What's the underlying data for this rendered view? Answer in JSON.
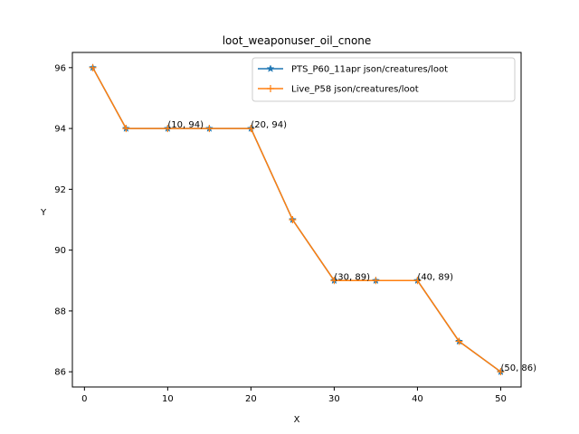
{
  "chart_data": {
    "type": "line",
    "title": "loot_weaponuser_oil_cnone",
    "xlabel": "X",
    "ylabel": "Y",
    "xlim": [
      -1.45,
      52.45
    ],
    "ylim": [
      85.5,
      96.5
    ],
    "xticks": [
      0,
      10,
      20,
      30,
      40,
      50
    ],
    "yticks": [
      86,
      88,
      90,
      92,
      94,
      96
    ],
    "grid": false,
    "legend_position": "top-right",
    "colors": {
      "series1": "#1f77b4",
      "series2": "#ff7f0e"
    },
    "x": [
      1,
      5,
      10,
      15,
      20,
      25,
      30,
      35,
      40,
      45,
      50
    ],
    "series": [
      {
        "name": "PTS_P60_11apr json/creatures/loot",
        "marker": "star",
        "values": [
          96,
          94,
          94,
          94,
          94,
          91,
          89,
          89,
          89,
          87,
          86
        ]
      },
      {
        "name": "Live_P58 json/creatures/loot",
        "marker": "plus",
        "values": [
          96,
          94,
          94,
          94,
          94,
          91,
          89,
          89,
          89,
          87,
          86
        ]
      }
    ],
    "annotations": [
      {
        "x": 10,
        "y": 94,
        "text": "(10, 94)"
      },
      {
        "x": 20,
        "y": 94,
        "text": "(20, 94)"
      },
      {
        "x": 30,
        "y": 89,
        "text": "(30, 89)"
      },
      {
        "x": 40,
        "y": 89,
        "text": "(40, 89)"
      },
      {
        "x": 50,
        "y": 86,
        "text": "(50, 86)"
      }
    ]
  }
}
